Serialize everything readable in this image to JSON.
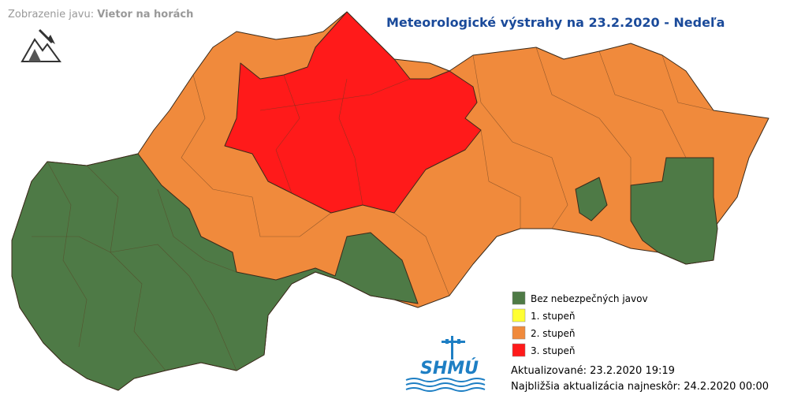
{
  "header": {
    "label": "Zobrazenie javu:",
    "phenomenon": "Vietor na horách",
    "title": "Meteorologické výstrahy na 23.2.2020 - Nedeľa"
  },
  "legend": [
    {
      "label": "Bez nebezpečných javov",
      "color": "#4e7a46"
    },
    {
      "label": "1. stupeň",
      "color": "#ffff33"
    },
    {
      "label": "2. stupeň",
      "color": "#f08a3c"
    },
    {
      "label": "3. stupeň",
      "color": "#ff1a1a"
    }
  ],
  "logo": "SHMÚ",
  "updated": {
    "label": "Aktualizované:",
    "value": "23.2.2020 19:19"
  },
  "next": {
    "label": "Najbližšia aktualizácia najneskôr:",
    "value": "24.2.2020 00:00"
  }
}
